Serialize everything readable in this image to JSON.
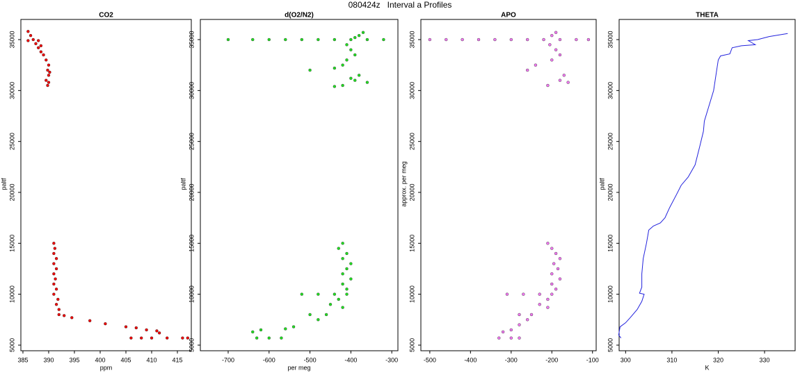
{
  "title": "080424z   Interval a Profiles",
  "chart_data": [
    {
      "type": "scatter",
      "title": "CO2",
      "xlabel": "ppm",
      "ylabel": "paltf",
      "color": "#ee0000",
      "x": [
        386,
        386.5,
        387,
        386,
        388,
        387.5,
        388,
        388.5,
        389,
        389.5,
        390,
        389.8,
        390,
        389.5,
        390,
        389.8,
        390.2,
        388.5,
        391,
        391.2,
        391,
        391.5,
        391,
        391.5,
        391,
        391.3,
        391,
        391.5,
        391,
        391.8,
        391.5,
        392,
        392,
        393,
        394.5,
        398,
        401,
        405,
        407,
        409,
        411,
        411.5,
        406,
        408,
        410,
        413,
        416,
        417
      ],
      "values": [
        35800,
        35400,
        35000,
        34900,
        34900,
        34600,
        34200,
        33800,
        33500,
        33000,
        32500,
        32000,
        31500,
        31000,
        30800,
        30500,
        31800,
        34400,
        15000,
        14500,
        14000,
        13500,
        13000,
        12500,
        12000,
        11500,
        11000,
        10500,
        10000,
        9500,
        9000,
        8500,
        8000,
        7900,
        7700,
        7400,
        7100,
        6800,
        6700,
        6500,
        6400,
        6200,
        5700,
        5700,
        5700,
        5700,
        5700,
        5700
      ],
      "xlim": [
        384.6,
        417.7
      ],
      "ylim": [
        4450,
        36980
      ],
      "xticks": [
        385,
        390,
        395,
        400,
        405,
        410,
        415
      ],
      "yticks": [
        5000,
        10000,
        15000,
        20000,
        25000,
        30000,
        35000
      ]
    },
    {
      "type": "scatter",
      "title": "d(O2/N2)",
      "xlabel": "per meg",
      "ylabel": "paltf",
      "color": "#22dd22",
      "x": [
        -700,
        -640,
        -600,
        -560,
        -520,
        -480,
        -440,
        -400,
        -360,
        -320,
        -380,
        -370,
        -390,
        -410,
        -400,
        -390,
        -410,
        -420,
        -440,
        -500,
        -380,
        -400,
        -390,
        -420,
        -360,
        -440,
        -420,
        -430,
        -410,
        -420,
        -400,
        -410,
        -420,
        -400,
        -420,
        -410,
        -520,
        -480,
        -440,
        -410,
        -430,
        -450,
        -420,
        -500,
        -460,
        -480,
        -540,
        -560,
        -620,
        -640,
        -630,
        -600,
        -570
      ],
      "values": [
        35000,
        35000,
        35000,
        35000,
        35000,
        35000,
        35000,
        35000,
        35000,
        35000,
        35400,
        35700,
        35200,
        34500,
        34000,
        33500,
        33000,
        32500,
        32200,
        32000,
        31500,
        31200,
        31000,
        30500,
        30800,
        30400,
        15000,
        14500,
        14000,
        13500,
        13000,
        12500,
        12000,
        11500,
        11000,
        10500,
        10000,
        10000,
        10000,
        10000,
        9500,
        9000,
        8700,
        8000,
        8000,
        7500,
        6800,
        6600,
        6500,
        6300,
        5700,
        5700,
        5700
      ],
      "xlim": [
        -768,
        -285
      ],
      "ylim": [
        4450,
        36980
      ],
      "xticks": [
        -700,
        -600,
        -500,
        -400,
        -300
      ],
      "yticks": [
        5000,
        10000,
        15000,
        20000,
        25000,
        30000,
        35000
      ]
    },
    {
      "type": "scatter",
      "title": "APO",
      "ylabel": "approx. per meg",
      "color": "#ee77ee",
      "x": [
        -500,
        -460,
        -420,
        -380,
        -340,
        -300,
        -260,
        -220,
        -180,
        -140,
        -110,
        -190,
        -200,
        -205,
        -190,
        -180,
        -200,
        -240,
        -260,
        -170,
        -180,
        -210,
        -160,
        -210,
        -200,
        -190,
        -180,
        -195,
        -185,
        -200,
        -180,
        -200,
        -190,
        -310,
        -270,
        -230,
        -200,
        -210,
        -230,
        -210,
        -280,
        -250,
        -260,
        -280,
        -300,
        -330,
        -300,
        -280,
        -320
      ],
      "values": [
        35000,
        35000,
        35000,
        35000,
        35000,
        35000,
        35000,
        35000,
        35000,
        35000,
        35000,
        35700,
        35400,
        34500,
        34000,
        33500,
        33000,
        32500,
        32000,
        31500,
        31000,
        30500,
        30800,
        15000,
        14500,
        14000,
        13500,
        13000,
        12500,
        12000,
        11500,
        11000,
        10500,
        10000,
        10000,
        10000,
        10000,
        9500,
        9000,
        8700,
        8000,
        8000,
        7500,
        7000,
        6500,
        5700,
        5700,
        5700,
        6300
      ],
      "xlim": [
        -522,
        -91
      ],
      "ylim": [
        4450,
        36980
      ],
      "xticks": [
        -500,
        -400,
        -300,
        -200,
        -100
      ],
      "yticks": [
        5000,
        10000,
        15000,
        20000,
        25000,
        30000,
        35000
      ]
    },
    {
      "type": "line",
      "title": "THETA",
      "xlabel": "K",
      "ylabel": "paltf",
      "color": "#2222dd",
      "x": [
        299,
        298.5,
        298.8,
        300,
        301,
        302.5,
        303.5,
        304,
        303,
        303.5,
        303.5,
        303.8,
        304.5,
        305,
        306,
        307.5,
        308.5,
        309.5,
        311,
        312,
        313.5,
        315,
        316,
        316.8,
        317,
        318,
        319,
        319.5,
        320,
        320.5,
        322.5,
        323,
        325,
        328,
        326.5,
        328.5,
        331,
        335
      ],
      "values": [
        5700,
        6000,
        6800,
        7200,
        7700,
        8500,
        9300,
        10000,
        10100,
        10700,
        12000,
        13500,
        15000,
        16300,
        16700,
        17000,
        17500,
        18500,
        19800,
        20700,
        21500,
        22700,
        24500,
        26000,
        27000,
        28500,
        30000,
        31500,
        33000,
        33400,
        33600,
        34200,
        34400,
        34500,
        34900,
        35000,
        35300,
        35600
      ],
      "xlim": [
        298.6,
        336.6
      ],
      "ylim": [
        4450,
        36980
      ],
      "xticks": [
        300,
        310,
        320,
        330
      ],
      "yticks": [
        5000,
        10000,
        15000,
        20000,
        25000,
        30000,
        35000
      ]
    }
  ]
}
